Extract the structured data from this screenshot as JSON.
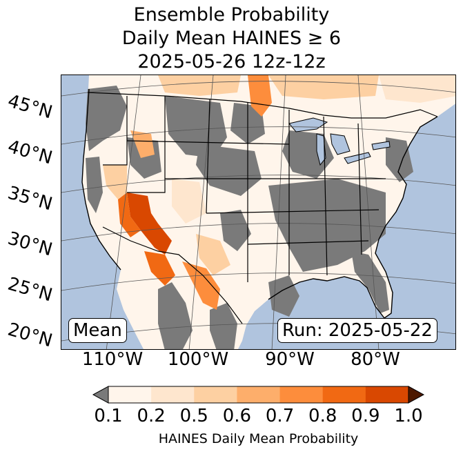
{
  "title": {
    "line1": "Ensemble Probability",
    "line2": "Daily Mean HAINES ≥ 6",
    "line3": "2025-05-26 12z-12z"
  },
  "map": {
    "lat_labels": [
      "45°N",
      "40°N",
      "35°N",
      "30°N",
      "25°N",
      "20°N"
    ],
    "lon_labels": [
      "110°W",
      "100°W",
      "90°W",
      "80°W"
    ],
    "mean_label": "Mean",
    "run_label": "Run: 2025-05-22",
    "colors": {
      "ocean": "#b0c4de",
      "land_none": "#ffffff",
      "below_threshold": "#7a7a7a",
      "lakes": "#b0c4de"
    }
  },
  "colorbar": {
    "title": "HAINES Daily Mean Probability",
    "tick_labels": [
      "0.1",
      "0.2",
      "0.5",
      "0.6",
      "0.7",
      "0.8",
      "0.9",
      "1.0"
    ],
    "under_color": "#7a7a7a",
    "over_color": "#4d1800",
    "bin_colors": [
      "#fff5eb",
      "#fee6ce",
      "#fdd0a2",
      "#fdae6b",
      "#fd8d3c",
      "#f16913",
      "#d94801"
    ]
  }
}
